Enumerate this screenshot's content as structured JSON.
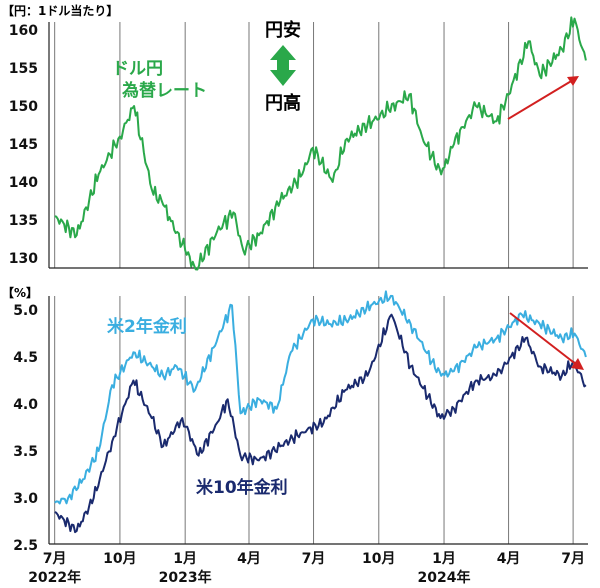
{
  "chart_data": [
    {
      "type": "line",
      "unit_label": "【円：1ドル当たり】",
      "ylim": [
        127,
        162
      ],
      "yticks": [
        130,
        135,
        140,
        145,
        150,
        155,
        160
      ],
      "grid": "vertical",
      "annotations": {
        "yen_weak": "円安",
        "yen_strong": "円高"
      },
      "series": [
        {
          "name": "ドル円\n為替レート",
          "color": "#2aa84a",
          "x": [
            "2022-07-01",
            "2022-08-01",
            "2022-09-01",
            "2022-10-01",
            "2022-10-21",
            "2022-11-15",
            "2022-12-01",
            "2023-01-01",
            "2023-01-16",
            "2023-02-15",
            "2023-03-10",
            "2023-03-24",
            "2023-04-15",
            "2023-05-15",
            "2023-06-15",
            "2023-06-30",
            "2023-07-28",
            "2023-08-15",
            "2023-09-15",
            "2023-10-15",
            "2023-11-13",
            "2023-12-01",
            "2023-12-28",
            "2024-01-15",
            "2024-02-01",
            "2024-02-15",
            "2024-03-15",
            "2024-04-01",
            "2024-04-29",
            "2024-05-15",
            "2024-06-15",
            "2024-07-03",
            "2024-07-12",
            "2024-07-19"
          ],
          "values": [
            135.5,
            133,
            141,
            146,
            150,
            139,
            137,
            131,
            128.5,
            133.5,
            136,
            131,
            133,
            137.5,
            141,
            144.5,
            140,
            145.5,
            147.5,
            149.5,
            151.5,
            146,
            141,
            145,
            148,
            150,
            148,
            151.5,
            158.5,
            154,
            157.5,
            161.5,
            158,
            156
          ]
        }
      ]
    },
    {
      "type": "line",
      "unit_label": "【%】",
      "ylim": [
        2.5,
        5.1
      ],
      "yticks": [
        2.5,
        3.0,
        3.5,
        4.0,
        4.5,
        5.0
      ],
      "grid": "vertical",
      "series": [
        {
          "name": "米2年金利",
          "color": "#3aaee0",
          "x": [
            "2022-07-01",
            "2022-07-20",
            "2022-08-10",
            "2022-09-01",
            "2022-09-20",
            "2022-10-20",
            "2022-11-15",
            "2022-12-01",
            "2022-12-20",
            "2023-01-15",
            "2023-02-10",
            "2023-03-08",
            "2023-03-20",
            "2023-04-15",
            "2023-05-10",
            "2023-05-30",
            "2023-06-30",
            "2023-07-25",
            "2023-08-20",
            "2023-09-20",
            "2023-10-18",
            "2023-11-15",
            "2023-12-15",
            "2023-12-28",
            "2024-01-15",
            "2024-02-15",
            "2024-03-15",
            "2024-04-20",
            "2024-05-15",
            "2024-06-15",
            "2024-07-03",
            "2024-07-19"
          ],
          "values": [
            2.95,
            3.0,
            3.2,
            3.5,
            4.2,
            4.55,
            4.4,
            4.3,
            4.4,
            4.15,
            4.6,
            5.05,
            3.9,
            4.05,
            3.95,
            4.55,
            4.9,
            4.85,
            4.9,
            5.05,
            5.15,
            4.85,
            4.45,
            4.3,
            4.35,
            4.6,
            4.7,
            4.95,
            4.85,
            4.7,
            4.75,
            4.5
          ]
        },
        {
          "name": "米10年金利",
          "color": "#1a2a6e",
          "x": [
            "2022-07-01",
            "2022-08-01",
            "2022-08-25",
            "2022-09-20",
            "2022-10-20",
            "2022-11-15",
            "2022-12-01",
            "2022-12-28",
            "2023-01-20",
            "2023-02-15",
            "2023-03-02",
            "2023-03-20",
            "2023-04-15",
            "2023-05-15",
            "2023-06-15",
            "2023-07-15",
            "2023-08-15",
            "2023-09-15",
            "2023-10-19",
            "2023-11-15",
            "2023-12-27",
            "2024-01-15",
            "2024-02-15",
            "2024-03-15",
            "2024-04-25",
            "2024-05-15",
            "2024-06-15",
            "2024-07-01",
            "2024-07-19"
          ],
          "values": [
            2.85,
            2.65,
            3.0,
            3.6,
            4.25,
            3.85,
            3.55,
            3.85,
            3.45,
            3.8,
            4.05,
            3.45,
            3.4,
            3.55,
            3.7,
            3.8,
            4.15,
            4.3,
            4.95,
            4.4,
            3.85,
            3.95,
            4.25,
            4.3,
            4.7,
            4.4,
            4.3,
            4.45,
            4.2
          ]
        }
      ]
    }
  ],
  "x_axis": {
    "ticks": [
      {
        "date": "2022-07-01",
        "label": "7月"
      },
      {
        "date": "2022-10-01",
        "label": "10月"
      },
      {
        "date": "2023-01-01",
        "label": "1月"
      },
      {
        "date": "2023-04-01",
        "label": "4月"
      },
      {
        "date": "2023-07-01",
        "label": "7月"
      },
      {
        "date": "2023-10-01",
        "label": "10月"
      },
      {
        "date": "2024-01-01",
        "label": "1月"
      },
      {
        "date": "2024-04-01",
        "label": "4月"
      },
      {
        "date": "2024-07-01",
        "label": "7月"
      }
    ],
    "years": [
      {
        "date": "2022-07-01",
        "label": "2022年"
      },
      {
        "date": "2023-01-01",
        "label": "2023年"
      },
      {
        "date": "2024-01-01",
        "label": "2024年"
      }
    ]
  },
  "colors": {
    "arrow_green": "#2aa84a",
    "trend_arrow_red": "#d22020",
    "grid": "#777777"
  }
}
